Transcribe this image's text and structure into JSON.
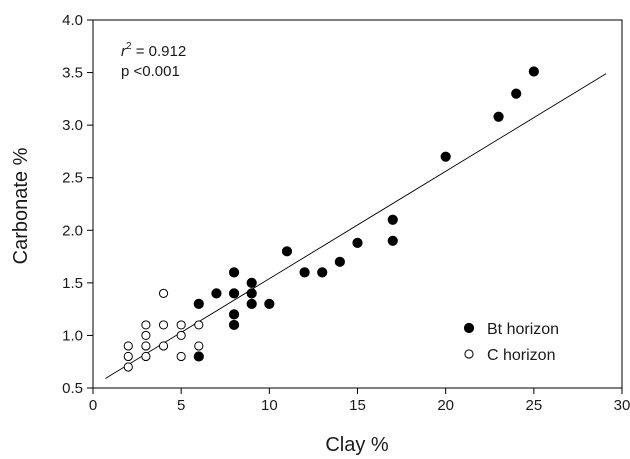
{
  "chart_data": {
    "type": "scatter",
    "xlabel": "Clay %",
    "ylabel": "Carbonate %",
    "xlim": [
      0,
      30
    ],
    "ylim": [
      0.5,
      4.0
    ],
    "xticks": [
      "0",
      "5",
      "10",
      "15",
      "20",
      "25",
      "30"
    ],
    "yticks": [
      "0.5",
      "1.0",
      "1.5",
      "2.0",
      "2.5",
      "3.0",
      "3.5",
      "4.0"
    ],
    "grid": false,
    "legend_position": "bottom-right",
    "annotations": {
      "r2_label": "r",
      "r2_sup": "2",
      "r2_value": " = 0.912",
      "p_value": "p <0.001"
    },
    "fit_line": {
      "x": [
        0.7,
        29.1
      ],
      "y": [
        0.59,
        3.49
      ]
    },
    "series": [
      {
        "name": "Bt horizon",
        "marker": "filled",
        "color": "#000000",
        "points": [
          [
            6,
            0.8
          ],
          [
            6,
            1.3
          ],
          [
            7,
            1.4
          ],
          [
            8,
            1.1
          ],
          [
            8,
            1.2
          ],
          [
            8,
            1.4
          ],
          [
            8,
            1.6
          ],
          [
            9,
            1.3
          ],
          [
            9,
            1.4
          ],
          [
            9,
            1.5
          ],
          [
            10,
            1.3
          ],
          [
            11,
            1.8
          ],
          [
            12,
            1.6
          ],
          [
            13,
            1.6
          ],
          [
            14,
            1.7
          ],
          [
            15,
            1.88
          ],
          [
            17,
            1.9
          ],
          [
            17,
            2.1
          ],
          [
            20,
            2.7
          ],
          [
            23,
            3.08
          ],
          [
            24,
            3.3
          ],
          [
            25,
            3.51
          ]
        ]
      },
      {
        "name": "C horizon",
        "marker": "open",
        "color": "#000000",
        "points": [
          [
            2,
            0.7
          ],
          [
            2,
            0.8
          ],
          [
            2,
            0.9
          ],
          [
            3,
            0.8
          ],
          [
            3,
            0.9
          ],
          [
            3,
            1.0
          ],
          [
            3,
            1.1
          ],
          [
            4,
            0.9
          ],
          [
            4,
            1.1
          ],
          [
            4,
            1.4
          ],
          [
            5,
            0.8
          ],
          [
            5,
            1.0
          ],
          [
            5,
            1.1
          ],
          [
            6,
            0.9
          ],
          [
            6,
            1.1
          ]
        ]
      }
    ]
  }
}
